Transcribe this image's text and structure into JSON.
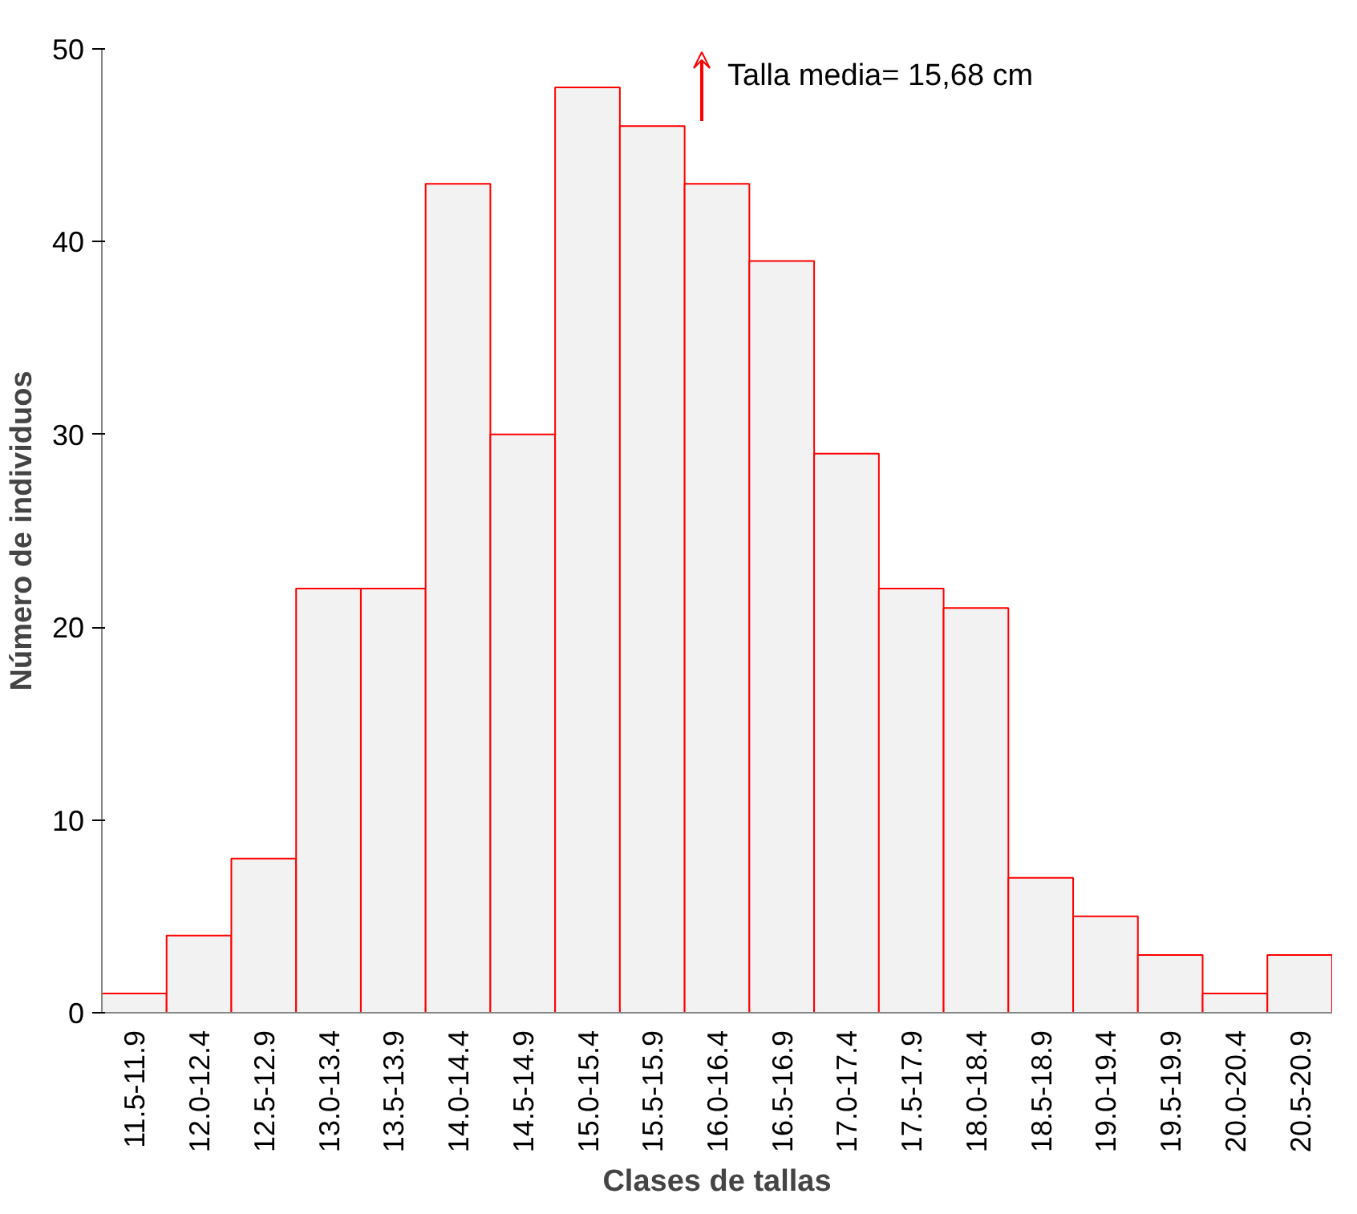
{
  "chart_data": {
    "type": "bar",
    "categories": [
      "11.5-11.9",
      "12.0-12.4",
      "12.5-12.9",
      "13.0-13.4",
      "13.5-13.9",
      "14.0-14.4",
      "14.5-14.9",
      "15.0-15.4",
      "15.5-15.9",
      "16.0-16.4",
      "16.5-16.9",
      "17.0-17.4",
      "17.5-17.9",
      "18.0-18.4",
      "18.5-18.9",
      "19.0-19.4",
      "19.5-19.9",
      "20.0-20.4",
      "20.5-20.9"
    ],
    "values": [
      1,
      4,
      8,
      22,
      22,
      43,
      30,
      48,
      46,
      43,
      39,
      29,
      22,
      21,
      7,
      5,
      3,
      1,
      3
    ],
    "color": "#f2f2f2",
    "xlabel": "Clases de tallas",
    "ylabel": "Número de individuos",
    "ylim": [
      0,
      50
    ],
    "yticks": [
      0,
      10,
      20,
      30,
      40,
      50
    ],
    "grid": false,
    "annotations": [
      "Talla media= 15,68 cm"
    ]
  }
}
